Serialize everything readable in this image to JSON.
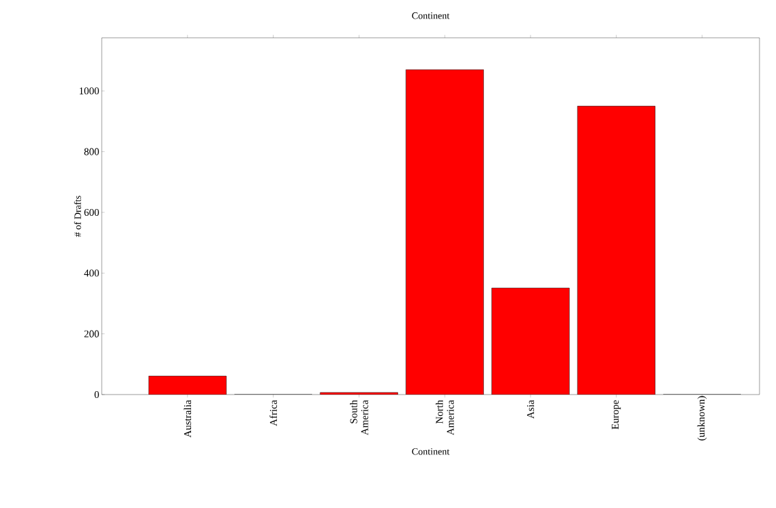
{
  "chart_data": {
    "type": "bar",
    "title": "Continent",
    "xlabel": "Continent",
    "ylabel": "# of Drafts",
    "categories": [
      "Australia",
      "Africa",
      "South America",
      "North America",
      "Asia",
      "Europe",
      "(unknown)"
    ],
    "values": [
      61,
      0,
      7,
      1070,
      351,
      950,
      0
    ],
    "color": "#ff0000",
    "ylim": [
      0,
      1175
    ],
    "yticks": [
      0,
      200,
      400,
      600,
      800,
      1000
    ],
    "grid": false
  }
}
